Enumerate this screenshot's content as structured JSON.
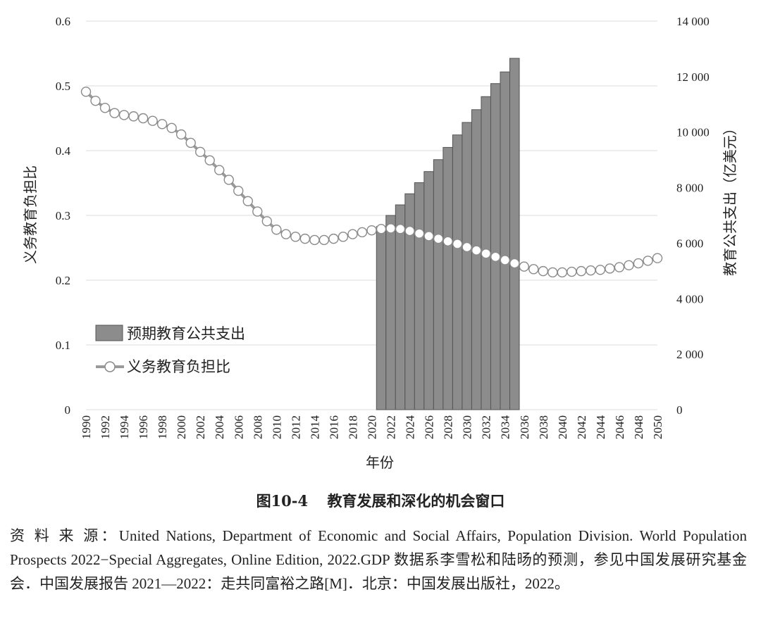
{
  "caption": {
    "figure_no": "图10-4",
    "title": "教育发展和深化的机会窗口"
  },
  "source_note": "资 料 来 源：United Nations, Department of Economic and Social Affairs, Population Division. World Population Prospects 2022−Special Aggregates, Online Edition, 2022.GDP 数据系李雪松和陆旸的预测，参见中国发展研究基金会．中国发展报告 2021—2022：走共同富裕之路[M]．北京：中国发展出版社，2022。",
  "chart_data": {
    "type": "bar+line",
    "title": "",
    "xlabel": "年份",
    "ylabel_left": "义务教育负担比",
    "ylabel_right": "教育公共支出（亿美元）",
    "ylim_left": [
      0,
      0.6
    ],
    "ylim_right": [
      0,
      14000
    ],
    "yticks_left": [
      "0",
      "0.1",
      "0.2",
      "0.3",
      "0.4",
      "0.5",
      "0.6"
    ],
    "yticks_right": [
      "0",
      "2 000",
      "4 000",
      "6 000",
      "8 000",
      "10 000",
      "12 000",
      "14 000"
    ],
    "xtick_years": [
      1990,
      1992,
      1994,
      1996,
      1998,
      2000,
      2002,
      2004,
      2006,
      2008,
      2010,
      2012,
      2014,
      2016,
      2018,
      2020,
      2022,
      2024,
      2026,
      2028,
      2030,
      2032,
      2034,
      2036,
      2038,
      2040,
      2042,
      2044,
      2046,
      2048,
      2050
    ],
    "grid": true,
    "legend_position": "lower-left",
    "colors": {
      "bar": "#8c8c8c",
      "bar_edge": "#555555",
      "line": "#9a9a9a",
      "marker_fill": "#ffffff",
      "grid": "#dddddd"
    },
    "series": [
      {
        "name": "预期教育公共支出",
        "type": "bar",
        "axis": "right",
        "x": [
          2021,
          2022,
          2023,
          2024,
          2025,
          2026,
          2027,
          2028,
          2029,
          2030,
          2031,
          2032,
          2033,
          2034,
          2035
        ],
        "values": [
          6600,
          7000,
          7380,
          7780,
          8180,
          8580,
          9010,
          9450,
          9900,
          10350,
          10810,
          11280,
          11750,
          12170,
          12660
        ]
      },
      {
        "name": "义务教育负担比",
        "type": "line",
        "axis": "left",
        "x": [
          1990,
          1991,
          1992,
          1993,
          1994,
          1995,
          1996,
          1997,
          1998,
          1999,
          2000,
          2001,
          2002,
          2003,
          2004,
          2005,
          2006,
          2007,
          2008,
          2009,
          2010,
          2011,
          2012,
          2013,
          2014,
          2015,
          2016,
          2017,
          2018,
          2019,
          2020,
          2021,
          2022,
          2023,
          2024,
          2025,
          2026,
          2027,
          2028,
          2029,
          2030,
          2031,
          2032,
          2033,
          2034,
          2035,
          2036,
          2037,
          2038,
          2039,
          2040,
          2041,
          2042,
          2043,
          2044,
          2045,
          2046,
          2047,
          2048,
          2049,
          2050
        ],
        "values": [
          0.491,
          0.477,
          0.466,
          0.458,
          0.455,
          0.453,
          0.45,
          0.446,
          0.441,
          0.435,
          0.425,
          0.412,
          0.398,
          0.385,
          0.37,
          0.355,
          0.338,
          0.322,
          0.306,
          0.291,
          0.278,
          0.271,
          0.267,
          0.264,
          0.262,
          0.262,
          0.264,
          0.267,
          0.271,
          0.274,
          0.277,
          0.279,
          0.28,
          0.279,
          0.276,
          0.272,
          0.268,
          0.264,
          0.26,
          0.256,
          0.251,
          0.246,
          0.241,
          0.236,
          0.231,
          0.226,
          0.221,
          0.217,
          0.214,
          0.212,
          0.212,
          0.213,
          0.214,
          0.215,
          0.216,
          0.218,
          0.22,
          0.223,
          0.226,
          0.23,
          0.234
        ]
      }
    ]
  }
}
